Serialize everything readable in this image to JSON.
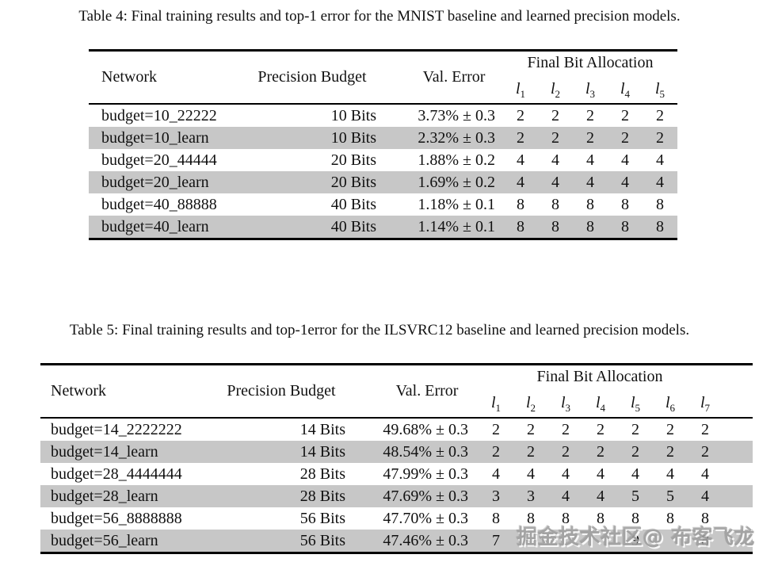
{
  "colors": {
    "row_shade": "#c7c7c7",
    "text": "#111111",
    "rule": "#000000",
    "watermark_gray": "#9f9f9f"
  },
  "watermark": {
    "text": "掘金技术社区@ 布客飞龙"
  },
  "table4": {
    "caption": "Table 4: Final training results and top-1 error for the MNIST baseline and learned precision models.",
    "headers": {
      "network": "Network",
      "precision_budget": "Precision Budget",
      "val_error": "Val. Error",
      "bit_allocation": "Final Bit Allocation"
    },
    "bit_columns": [
      "l1",
      "l2",
      "l3",
      "l4",
      "l5"
    ],
    "rows": [
      {
        "network": "budget=10_22222",
        "budget": "10 Bits",
        "val_error": "3.73% ± 0.3",
        "bits": [
          "2",
          "2",
          "2",
          "2",
          "2"
        ],
        "shaded": false
      },
      {
        "network": "budget=10_learn",
        "budget": "10 Bits",
        "val_error": "2.32% ± 0.3",
        "bits": [
          "2",
          "2",
          "2",
          "2",
          "2"
        ],
        "shaded": true
      },
      {
        "network": "budget=20_44444",
        "budget": "20 Bits",
        "val_error": "1.88% ± 0.2",
        "bits": [
          "4",
          "4",
          "4",
          "4",
          "4"
        ],
        "shaded": false
      },
      {
        "network": "budget=20_learn",
        "budget": "20 Bits",
        "val_error": "1.69% ± 0.2",
        "bits": [
          "4",
          "4",
          "4",
          "4",
          "4"
        ],
        "shaded": true
      },
      {
        "network": "budget=40_88888",
        "budget": "40 Bits",
        "val_error": "1.18% ± 0.1",
        "bits": [
          "8",
          "8",
          "8",
          "8",
          "8"
        ],
        "shaded": false
      },
      {
        "network": "budget=40_learn",
        "budget": "40 Bits",
        "val_error": "1.14% ± 0.1",
        "bits": [
          "8",
          "8",
          "8",
          "8",
          "8"
        ],
        "shaded": true
      }
    ]
  },
  "table5": {
    "caption": "Table 5: Final training results and top-1error for the ILSVRC12 baseline and learned precision models.",
    "headers": {
      "network": "Network",
      "precision_budget": "Precision Budget",
      "val_error": "Val. Error",
      "bit_allocation": "Final Bit Allocation"
    },
    "bit_columns": [
      "l1",
      "l2",
      "l3",
      "l4",
      "l5",
      "l6",
      "l7"
    ],
    "rows": [
      {
        "network": "budget=14_2222222",
        "budget": "14 Bits",
        "val_error": "49.68% ± 0.3",
        "bits": [
          "2",
          "2",
          "2",
          "2",
          "2",
          "2",
          "2"
        ],
        "shaded": false
      },
      {
        "network": "budget=14_learn",
        "budget": "14 Bits",
        "val_error": "48.54% ± 0.3",
        "bits": [
          "2",
          "2",
          "2",
          "2",
          "2",
          "2",
          "2"
        ],
        "shaded": true
      },
      {
        "network": "budget=28_4444444",
        "budget": "28 Bits",
        "val_error": "47.99% ± 0.3",
        "bits": [
          "4",
          "4",
          "4",
          "4",
          "4",
          "4",
          "4"
        ],
        "shaded": false
      },
      {
        "network": "budget=28_learn",
        "budget": "28 Bits",
        "val_error": "47.69% ± 0.3",
        "bits": [
          "3",
          "3",
          "4",
          "4",
          "5",
          "5",
          "4"
        ],
        "shaded": true
      },
      {
        "network": "budget=56_8888888",
        "budget": "56 Bits",
        "val_error": "47.70% ± 0.3",
        "bits": [
          "8",
          "8",
          "8",
          "8",
          "8",
          "8",
          "8"
        ],
        "shaded": false
      },
      {
        "network": "budget=56_learn",
        "budget": "56 Bits",
        "val_error": "47.46% ± 0.3",
        "bits": [
          "7",
          "",
          "",
          "",
          "9",
          "",
          "8"
        ],
        "shaded": true
      }
    ]
  }
}
